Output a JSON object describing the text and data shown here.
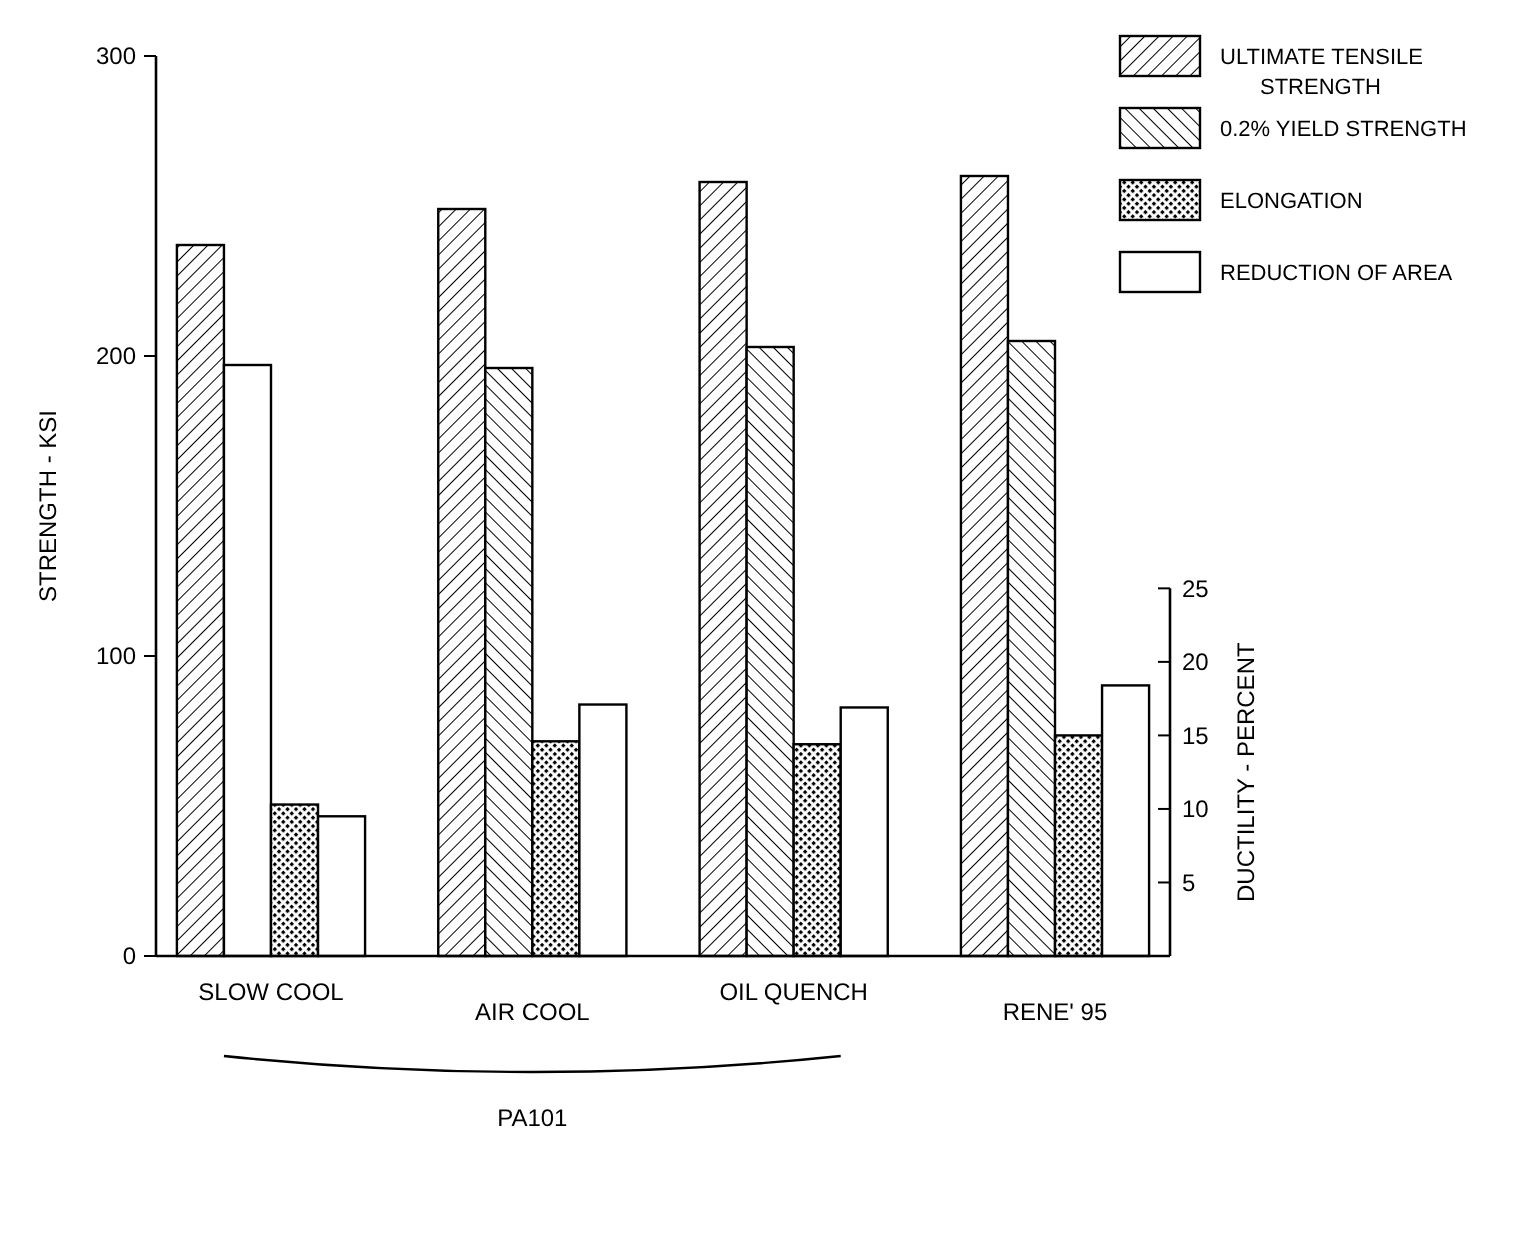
{
  "chart_data": {
    "type": "bar",
    "categories": [
      "SLOW COOL",
      "AIR COOL",
      "OIL QUENCH",
      "RENE' 95"
    ],
    "ylabel": "STRENGTH - KSI",
    "y2label": "DUCTILITY - PERCENT",
    "ylim": [
      0,
      300
    ],
    "yticks": [
      0,
      100,
      200,
      300
    ],
    "y2lim": [
      0,
      61.2
    ],
    "y2ticks": [
      5,
      10,
      15,
      20,
      25
    ],
    "legend": "top right",
    "grid": false,
    "annotations": [
      "PA101"
    ],
    "series": [
      {
        "name": "ULTIMATE TENSILE STRENGTH",
        "color": "#000000",
        "values": [
          237,
          249,
          258,
          260
        ]
      },
      {
        "name": "0.2% YIELD STRENGTH",
        "color": "#000000",
        "colors": [
          "#ffffff",
          "#000000",
          "#000000",
          "#000000"
        ],
        "values": [
          197,
          196,
          203,
          205
        ]
      },
      {
        "name": "ELONGATION",
        "color": "#000000",
        "axis": "y2",
        "values": [
          10.3,
          14.6,
          14.4,
          15.0
        ]
      },
      {
        "name": "REDUCTION OF AREA",
        "color": "#ffffff",
        "axis": "y2",
        "values": [
          9.5,
          17.1,
          16.9,
          18.4
        ]
      }
    ]
  }
}
